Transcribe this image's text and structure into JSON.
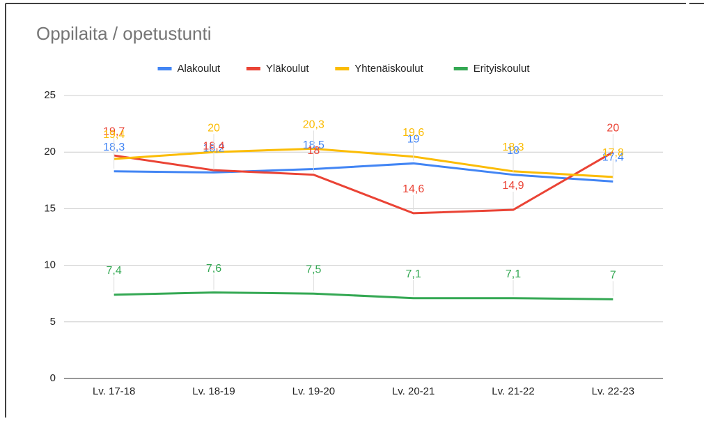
{
  "chart_data": {
    "type": "line",
    "title": "Oppilaita / opetustunti",
    "categories": [
      "Lv. 17-18",
      "Lv. 18-19",
      "Lv. 19-20",
      "Lv. 20-21",
      "Lv. 21-22",
      "Lv. 22-23"
    ],
    "series": [
      {
        "name": "Alakoulut",
        "color": "#4285f4",
        "values": [
          18.3,
          18.2,
          18.5,
          19,
          18,
          17.4
        ],
        "value_labels": [
          "18,3",
          "18,2",
          "18,5",
          "19",
          "18",
          "17,4"
        ]
      },
      {
        "name": "Yläkoulut",
        "color": "#ea4335",
        "values": [
          19.7,
          18.4,
          18,
          14.6,
          14.9,
          20
        ],
        "value_labels": [
          "19,7",
          "18,4",
          "18",
          "14,6",
          "14,9",
          "20"
        ]
      },
      {
        "name": "Yhtenäiskoulut",
        "color": "#fbbc04",
        "values": [
          19.4,
          20,
          20.3,
          19.6,
          18.3,
          17.8
        ],
        "value_labels": [
          "19,4",
          "20",
          "20,3",
          "19,6",
          "18,3",
          "17,8"
        ]
      },
      {
        "name": "Erityiskoulut",
        "color": "#34a853",
        "values": [
          7.4,
          7.6,
          7.5,
          7.1,
          7.1,
          7
        ],
        "value_labels": [
          "7,4",
          "7,6",
          "7,5",
          "7,1",
          "7,1",
          "7"
        ]
      }
    ],
    "ylim": [
      0,
      25
    ],
    "yticks": [
      0,
      5,
      10,
      15,
      20,
      25
    ],
    "grid": true,
    "legend": "top"
  }
}
